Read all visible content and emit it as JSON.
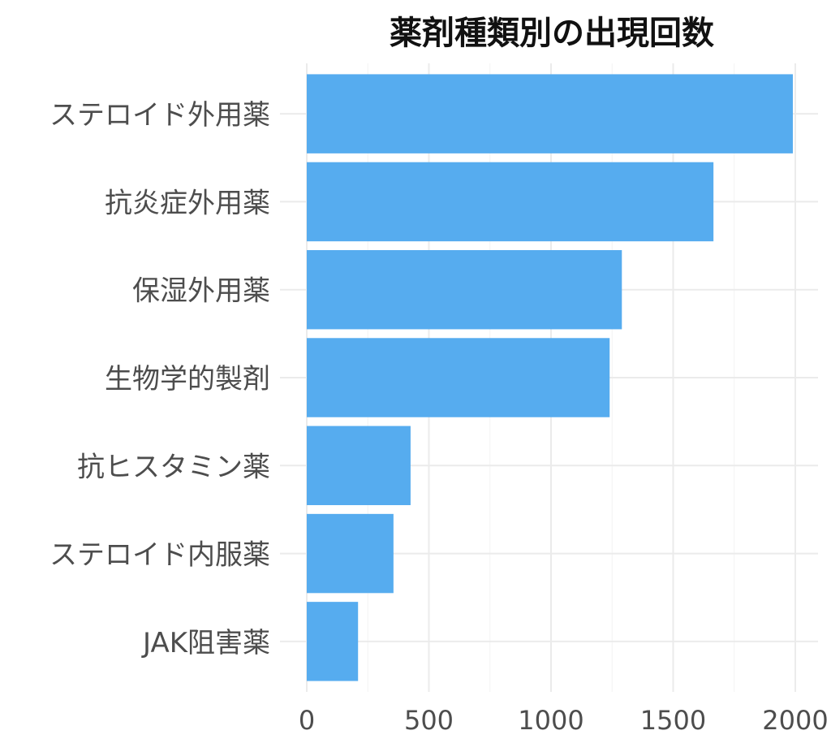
{
  "chart_data": {
    "type": "bar",
    "orientation": "horizontal",
    "title": "薬剤種類別の出現回数",
    "xlabel": "",
    "ylabel": "",
    "categories": [
      "ステロイド外用薬",
      "抗炎症外用薬",
      "保湿外用薬",
      "生物学的製剤",
      "抗ヒスタミン薬",
      "ステロイド内服薬",
      "JAK阻害薬"
    ],
    "values": [
      1990,
      1665,
      1290,
      1240,
      425,
      355,
      210
    ],
    "xlim": [
      0,
      2000
    ],
    "x_ticks": [
      0,
      500,
      1000,
      1500,
      2000
    ],
    "x_tick_labels": [
      "0",
      "500",
      "1000",
      "1500",
      "2000"
    ],
    "grid": true,
    "legend": "none",
    "bar_color": "#56ACEF"
  }
}
